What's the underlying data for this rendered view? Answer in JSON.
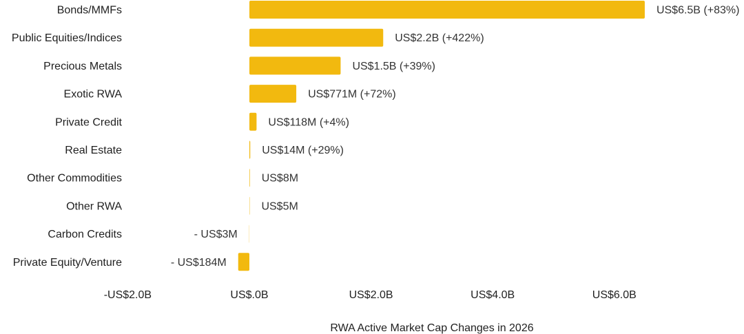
{
  "chart_data": {
    "type": "bar",
    "orientation": "horizontal",
    "xlabel": "RWA Active Market Cap Changes in 2026",
    "ylabel": "",
    "xlim": [
      -2.0,
      6.5
    ],
    "x_ticks": [
      -2.0,
      0.0,
      2.0,
      4.0,
      6.0
    ],
    "x_tick_labels": [
      "-US$2.0B",
      "US$.0B",
      "US$2.0B",
      "US$4.0B",
      "US$6.0B"
    ],
    "grid": false,
    "legend": "none",
    "bar_color": "#F2B90F",
    "unit": "US$ billions",
    "categories": [
      "Bonds/MMFs",
      "Public Equities/Indices",
      "Precious Metals",
      "Exotic RWA",
      "Private Credit",
      "Real Estate",
      "Other Commodities",
      "Other RWA",
      "Carbon Credits",
      "Private Equity/Venture"
    ],
    "values": [
      6.5,
      2.2,
      1.5,
      0.771,
      0.118,
      0.014,
      0.008,
      0.005,
      -0.003,
      -0.184
    ],
    "data_labels": [
      "US$6.5B (+83%)",
      "US$2.2B (+422%)",
      "US$1.5B (+39%)",
      "US$771M (+72%)",
      "US$118M (+4%)",
      "US$14M (+29%)",
      "US$8M",
      "US$5M",
      "- US$3M",
      "- US$184M"
    ]
  }
}
